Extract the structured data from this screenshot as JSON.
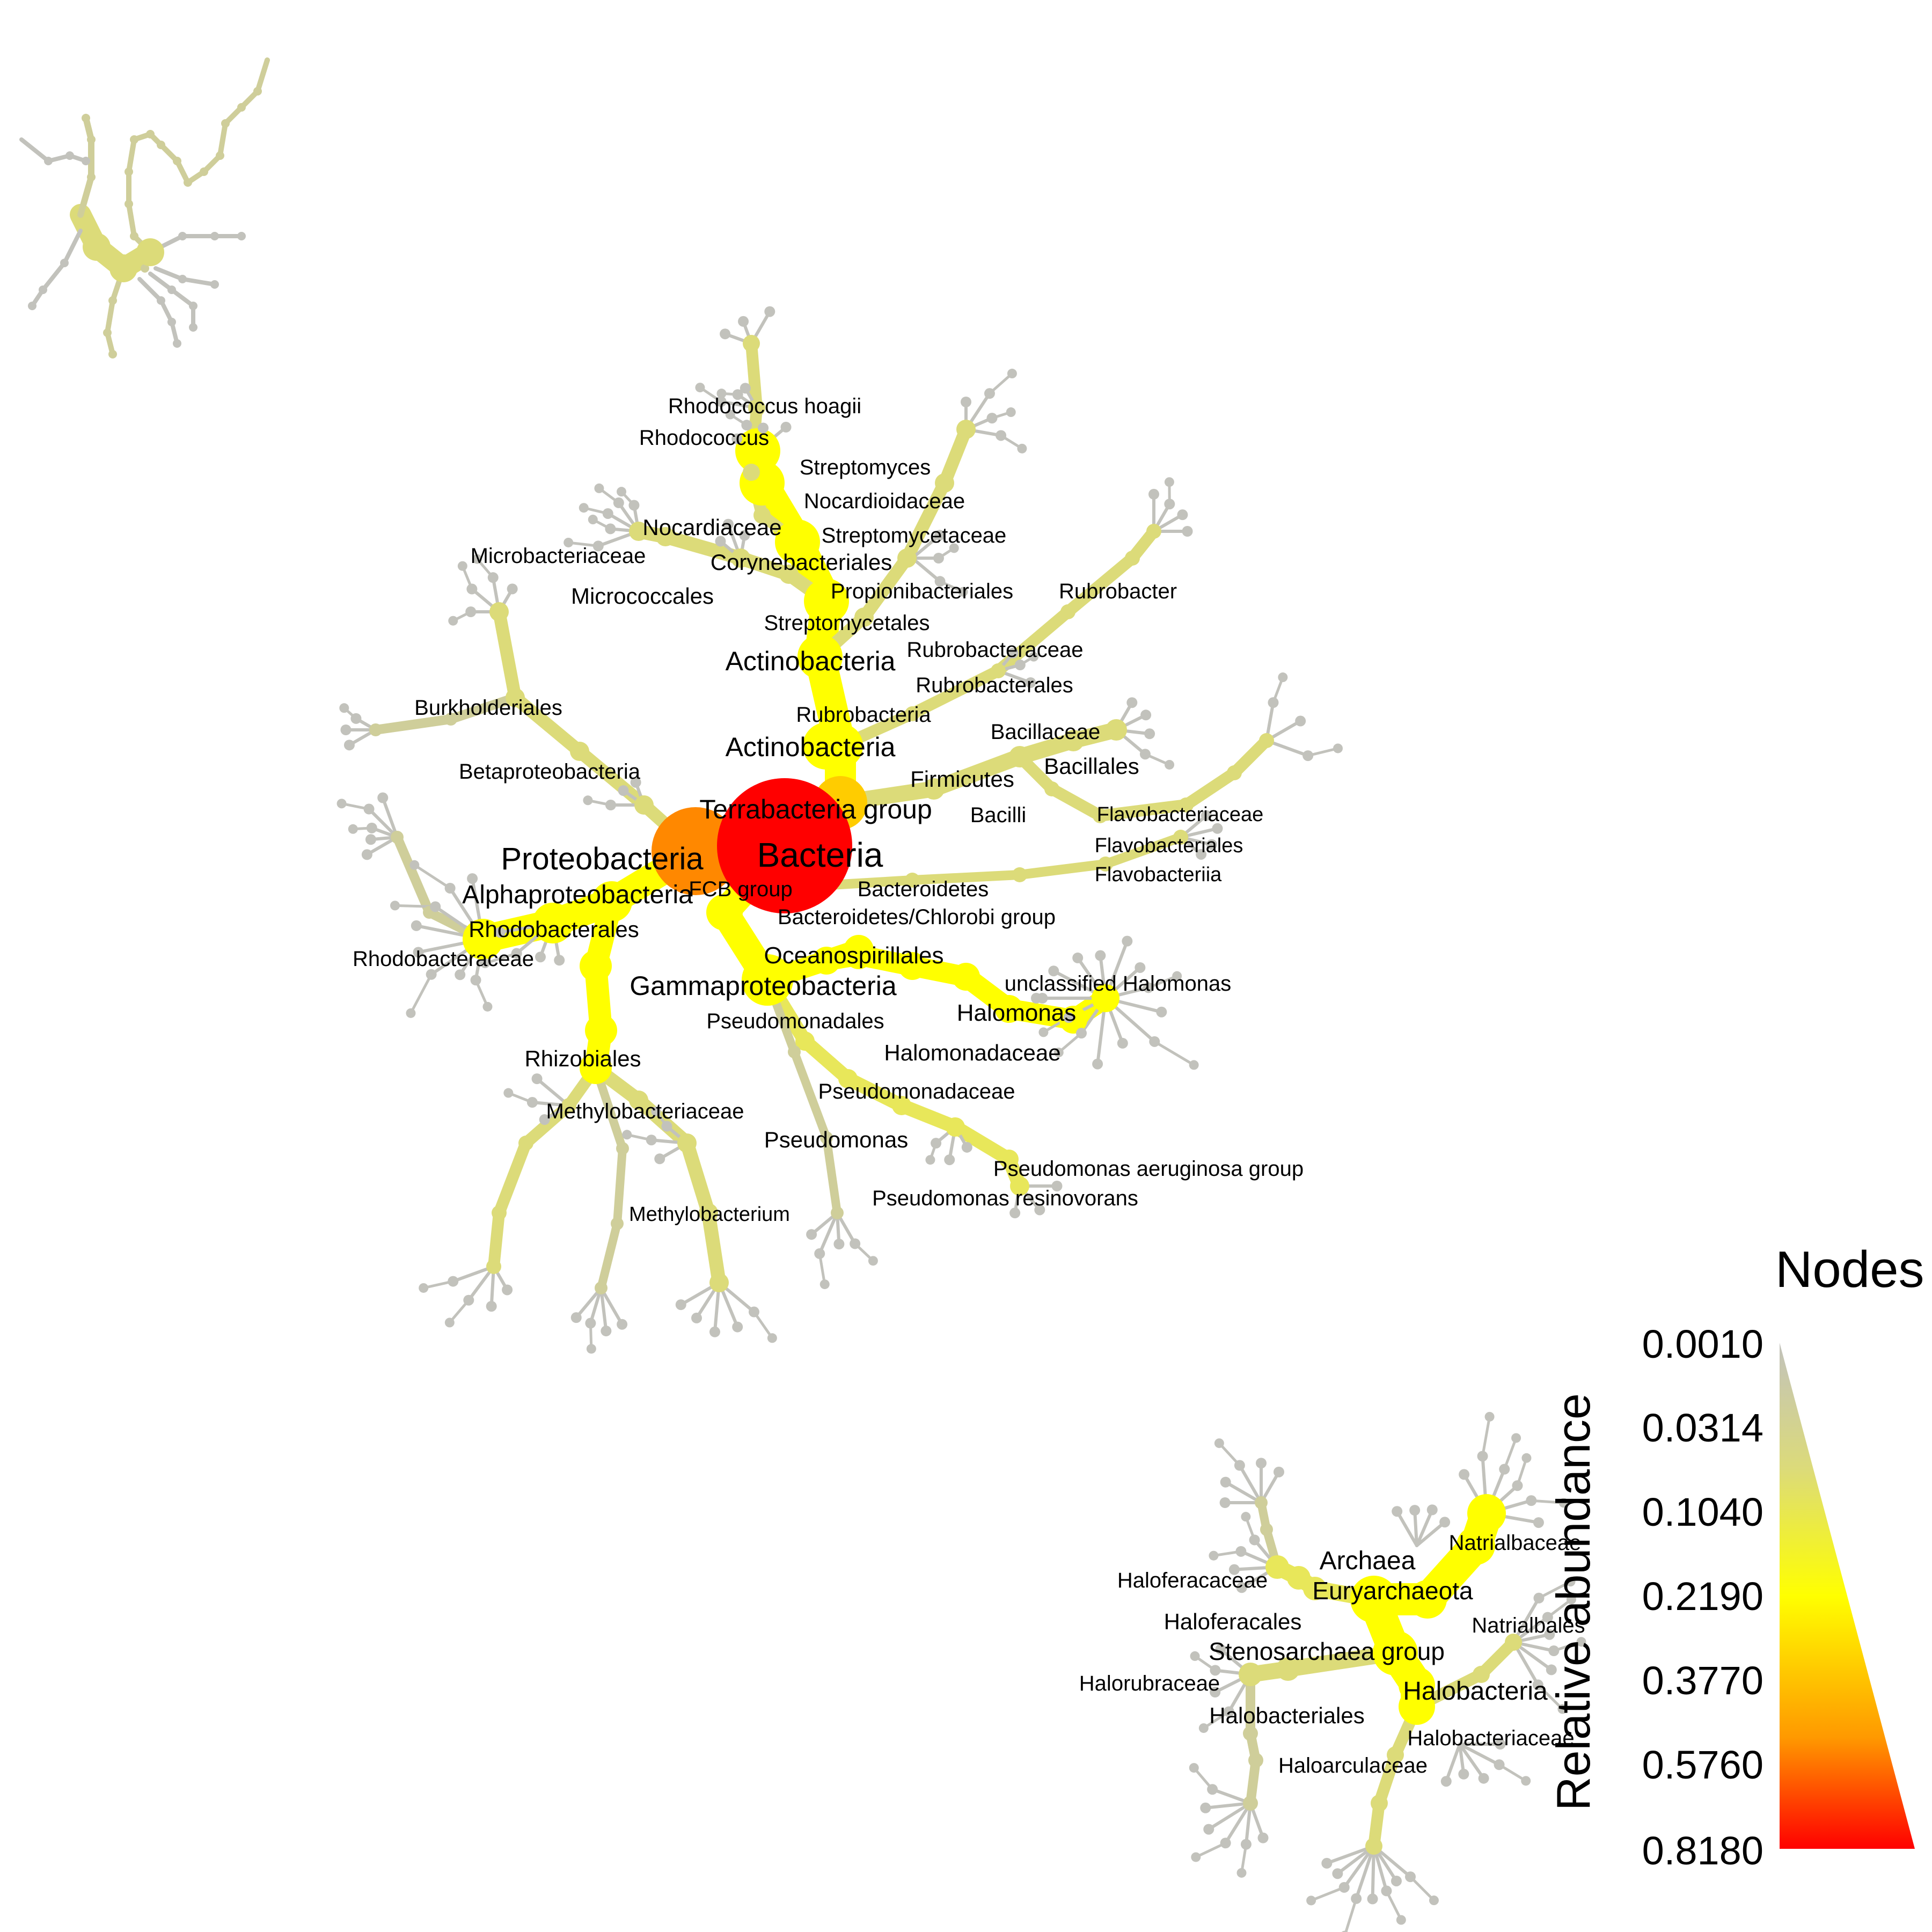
{
  "colors": {
    "edge_gray": "#C2C2BC",
    "olive": "#CFCE9A",
    "khaki": "#DCDB79",
    "lime": "#E8E75A",
    "yellow": "#FFFF00",
    "amber": "#FFCC00",
    "orange": "#FF8800",
    "red": "#FF0000",
    "text": "#000000"
  },
  "labels": {
    "bacteria": "Bacteria",
    "terrabacteria": "Terrabacteria group",
    "proteobacteria": "Proteobacteria",
    "fcb": "FCB group",
    "bacteroidetes_phylum": "Bacteroidetes",
    "bacteroidetes_chlorobi": "Bacteroidetes/Chlorobi group",
    "actino_phylum": "Actinobacteria",
    "actino_class": "Actinobacteria",
    "rubrobacteria": "Rubrobacteria",
    "streptomycetales": "Streptomycetales",
    "propionibacteriales": "Propionibacteriales",
    "micrococcales": "Micrococcales",
    "corynebacteriales": "Corynebacteriales",
    "microbacteriaceae": "Microbacteriaceae",
    "nocardiaceae": "Nocardiaceae",
    "streptomycetaceae": "Streptomycetaceae",
    "nocardioidaceae": "Nocardioidaceae",
    "streptomyces": "Streptomyces",
    "rhodococcus": "Rhodococcus",
    "rhodococcus_hoagii": "Rhodococcus hoagii",
    "rubrobacter": "Rubrobacter",
    "rubrobacteraceae": "Rubrobacteraceae",
    "rubrobacterales": "Rubrobacterales",
    "firmicutes": "Firmicutes",
    "bacillaceae": "Bacillaceae",
    "bacillales": "Bacillales",
    "bacilli": "Bacilli",
    "flavobacteriaceae": "Flavobacteriaceae",
    "flavobacteriales": "Flavobacteriales",
    "flavobacteriia": "Flavobacteriia",
    "burkholderiales": "Burkholderiales",
    "betaproteobacteria": "Betaproteobacteria",
    "alphaproteobacteria": "Alphaproteobacteria",
    "rhodobacterales": "Rhodobacterales",
    "rhodobacteraceae": "Rhodobacteraceae",
    "gammaproteobacteria": "Gammaproteobacteria",
    "oceanospirillales": "Oceanospirillales",
    "unclassified_halomonas": "unclassified Halomonas",
    "halomonas": "Halomonas",
    "halomonadaceae": "Halomonadaceae",
    "pseudomonadales": "Pseudomonadales",
    "pseudomonadaceae": "Pseudomonadaceae",
    "pseudomonas": "Pseudomonas",
    "pseudomonas_aeruginosa_group": "Pseudomonas aeruginosa group",
    "pseudomonas_resinovorans": "Pseudomonas resinovorans",
    "rhizobiales": "Rhizobiales",
    "methylobacteriaceae": "Methylobacteriaceae",
    "methylobacterium": "Methylobacterium",
    "archaea": "Archaea",
    "euryarchaeota": "Euryarchaeota",
    "stenosarchaea": "Stenosarchaea group",
    "halobacteria": "Halobacteria",
    "halobacteriales": "Halobacteriales",
    "halobacteriaceae": "Halobacteriaceae",
    "haloarculaceae": "Haloarculaceae",
    "haloferacales": "Haloferacales",
    "haloferacaceae": "Haloferacaceae",
    "halorubraceae": "Halorubraceae",
    "natrialbaceae": "Natrialbaceae",
    "natrialbales": "Natrialbales"
  },
  "legend": {
    "title": "Nodes",
    "axis_label": "Relative abundance",
    "ticks": [
      "0.0010",
      "0.0314",
      "0.1040",
      "0.2190",
      "0.3770",
      "0.5760",
      "0.8180"
    ]
  }
}
